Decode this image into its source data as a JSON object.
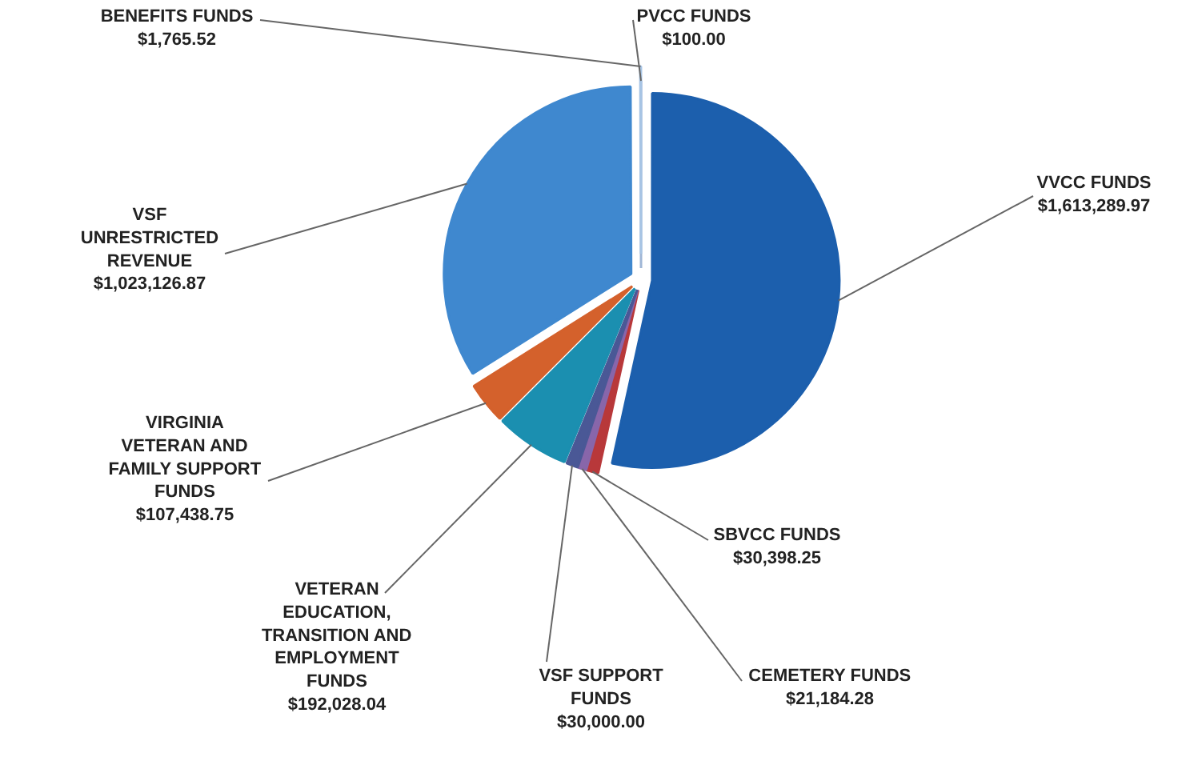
{
  "chart_data": {
    "type": "pie",
    "categories": [
      "PVCC FUNDS",
      "VVCC FUNDS",
      "SBVCC FUNDS",
      "CEMETERY FUNDS",
      "VSF SUPPORT FUNDS",
      "VETERAN EDUCATION, TRANSITION AND EMPLOYMENT FUNDS",
      "VIRGINIA VETERAN AND FAMILY SUPPORT FUNDS",
      "VSF UNRESTRICTED REVENUE",
      "BENEFITS FUNDS"
    ],
    "values": [
      100.0,
      1613289.97,
      30398.25,
      21184.28,
      30000.0,
      192028.04,
      107438.75,
      1023126.87,
      1765.52
    ],
    "value_labels": [
      "$100.00",
      "$1,613,289.97",
      "$30,398.25",
      "$21,184.28",
      "$30,000.00",
      "$192,028.04",
      "$107,438.75",
      "$1,023,126.87",
      "$1,765.52"
    ],
    "colors": [
      "#9fb6d6",
      "#1c5fad",
      "#b8383a",
      "#8866aa",
      "#4a5896",
      "#1b8fb0",
      "#d4612c",
      "#3f88cf",
      "#a7c4e4"
    ]
  }
}
